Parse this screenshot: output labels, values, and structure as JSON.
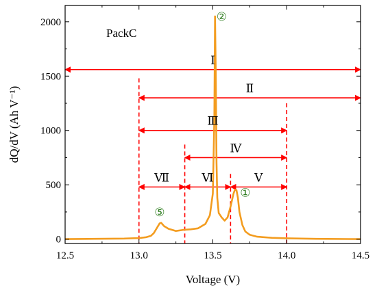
{
  "chart_data": {
    "type": "line",
    "inset_label": "PackC",
    "xlabel": "Voltage (V)",
    "ylabel": "dQ/dV (Ah V⁻¹)",
    "xlim": [
      12.5,
      14.5
    ],
    "ylim": [
      -40,
      2150
    ],
    "xticks": [
      12.5,
      13.0,
      13.5,
      14.0,
      14.5
    ],
    "xtick_labels": [
      "12.5",
      "13.0",
      "13.5",
      "14.0",
      "14.5"
    ],
    "yticks": [
      0,
      500,
      1000,
      1500,
      2000
    ],
    "ytick_labels": [
      "0",
      "500",
      "1000",
      "1500",
      "2000"
    ],
    "grid": false,
    "colors": {
      "series": "#f39c1f",
      "annotation": "#ff0000",
      "peak_marker": "#2e7d1f"
    },
    "series": [
      {
        "x": [
          12.5,
          12.7,
          12.9,
          13.0,
          13.05,
          13.08,
          13.1,
          13.12,
          13.14,
          13.15,
          13.17,
          13.2,
          13.25,
          13.3,
          13.35,
          13.4,
          13.45,
          13.48,
          13.5,
          13.51,
          13.515,
          13.52,
          13.525,
          13.53,
          13.54,
          13.56,
          13.58,
          13.6,
          13.62,
          13.64,
          13.65,
          13.66,
          13.67,
          13.68,
          13.7,
          13.72,
          13.75,
          13.8,
          13.9,
          14.0,
          14.2,
          14.5
        ],
        "values": [
          0,
          3,
          5,
          10,
          18,
          30,
          55,
          100,
          145,
          150,
          120,
          95,
          75,
          85,
          90,
          100,
          140,
          220,
          420,
          1100,
          2050,
          1500,
          700,
          380,
          240,
          200,
          170,
          200,
          300,
          420,
          455,
          450,
          380,
          250,
          130,
          70,
          40,
          22,
          12,
          8,
          3,
          0
        ]
      }
    ],
    "annotations": {
      "spans": [
        {
          "label": "Ⅰ",
          "x_from": 12.5,
          "x_to": 14.5,
          "y": 1560
        },
        {
          "label": "Ⅱ",
          "x_from": 13.0,
          "x_to": 14.5,
          "y": 1300
        },
        {
          "label": "Ⅲ",
          "x_from": 13.0,
          "x_to": 14.0,
          "y": 1000
        },
        {
          "label": "Ⅳ",
          "x_from": 13.31,
          "x_to": 14.0,
          "y": 750
        },
        {
          "label": "Ⅴ",
          "x_from": 13.62,
          "x_to": 14.0,
          "y": 480
        },
        {
          "label": "Ⅵ",
          "x_from": 13.31,
          "x_to": 13.62,
          "y": 480
        },
        {
          "label": "Ⅶ",
          "x_from": 13.0,
          "x_to": 13.31,
          "y": 480
        }
      ],
      "boundaries": [
        {
          "x": 13.0,
          "y_top": 1480
        },
        {
          "x": 13.31,
          "y_top": 870
        },
        {
          "x": 13.62,
          "y_top": 600
        },
        {
          "x": 14.0,
          "y_top": 1250
        }
      ],
      "peaks": [
        {
          "label": "②",
          "x": 13.56,
          "y": 2050
        },
        {
          "label": "①",
          "x": 13.72,
          "y": 430
        },
        {
          "label": "⑤",
          "x": 13.14,
          "y": 250
        }
      ]
    }
  }
}
